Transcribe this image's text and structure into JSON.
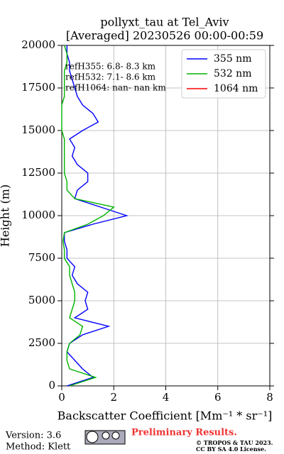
{
  "chart_data": {
    "type": "line",
    "title": "pollyxt_tau at Tel_Aviv",
    "subtitle": "[Averaged] 20230526 00:00-00:59",
    "x_label": "Backscatter Coefficient [Mm⁻¹ * sr⁻¹]",
    "y_label": "Height (m)",
    "y": [
      0,
      500,
      1000,
      1500,
      2000,
      2500,
      3000,
      3500,
      4000,
      4500,
      5000,
      5500,
      6000,
      6500,
      7000,
      7500,
      8000,
      8500,
      9000,
      9500,
      10000,
      10500,
      11000,
      11500,
      12000,
      12500,
      13000,
      13500,
      14000,
      14500,
      15000,
      15500,
      16000,
      16500,
      17000,
      17500,
      18000,
      18500,
      19000,
      19500,
      20000
    ],
    "series": [
      {
        "name": "355 nm",
        "color": "#0000ff",
        "values": [
          0.2,
          1.2,
          0.8,
          0.5,
          0.2,
          0.3,
          0.8,
          1.8,
          0.5,
          1.0,
          0.9,
          1.0,
          0.6,
          0.4,
          0.5,
          0.2,
          0.2,
          0.1,
          0.1,
          1.2,
          2.5,
          1.5,
          0.5,
          0.6,
          1.0,
          1.0,
          0.6,
          0.4,
          0.5,
          0.3,
          0.8,
          1.4,
          1.2,
          0.8,
          0.6,
          0.5,
          0.4,
          0.3,
          0.3,
          0.2,
          0.2
        ]
      },
      {
        "name": "532 nm",
        "color": "#00b400",
        "values": [
          0.3,
          1.3,
          0.3,
          0.2,
          0.2,
          0.3,
          0.7,
          0.8,
          0.3,
          0.4,
          0.5,
          0.5,
          0.4,
          0.3,
          0.3,
          0.1,
          0.1,
          0.05,
          0.1,
          1.0,
          1.6,
          2.0,
          0.5,
          0.2,
          0.2,
          0.1,
          0.1,
          0.1,
          0.1,
          0.1,
          0.0,
          0.0,
          0.0,
          0.0,
          0.1,
          0.1,
          0.1,
          0.1,
          0.2,
          0.2,
          0.1
        ]
      },
      {
        "name": "1064 nm",
        "color": "#ff0000",
        "values": [
          null,
          null,
          null,
          null,
          null,
          null,
          null,
          null,
          null,
          null,
          null,
          null,
          null,
          null,
          null,
          null,
          null,
          null,
          null,
          null,
          null,
          null,
          null,
          null,
          null,
          null,
          null,
          null,
          null,
          null,
          null,
          null,
          null,
          null,
          null,
          null,
          null,
          null,
          null,
          null,
          null
        ]
      }
    ],
    "annotations": [
      "refH355:  6.8- 8.3 km",
      "refH532:  7.1- 8.6 km",
      "refH1064:  nan- nan km"
    ],
    "xlim": [
      0,
      8
    ],
    "xticks": [
      0,
      2,
      4,
      6,
      8
    ],
    "ylim": [
      0,
      20000
    ],
    "yticks": [
      0,
      2500,
      5000,
      7500,
      10000,
      12500,
      15000,
      17500,
      20000
    ],
    "grid": true,
    "legend": "upper right"
  },
  "footer": {
    "version": "Version: 3.6",
    "method": "Method: Klett",
    "notice": "Preliminary Results.",
    "copyright": "© TROPOS & TAU 2023.",
    "license": "CC BY SA 4.0 License."
  }
}
